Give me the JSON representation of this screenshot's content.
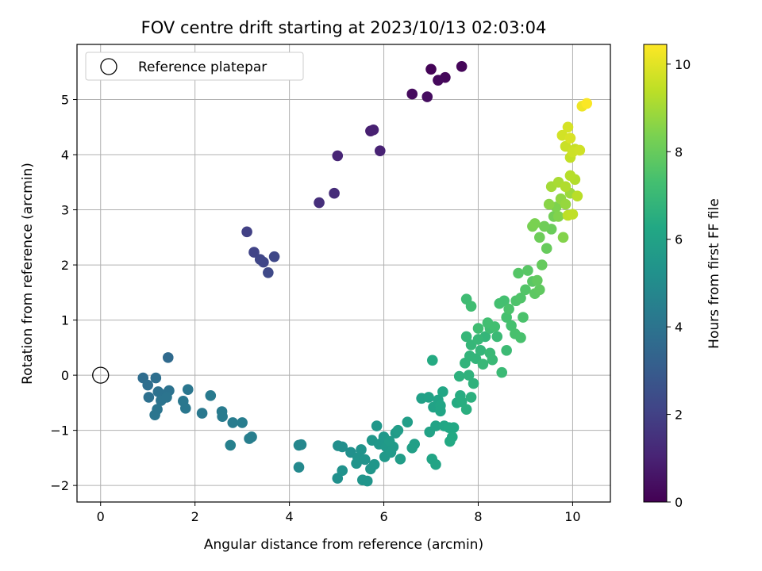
{
  "chart_data": {
    "type": "scatter",
    "title": "FOV centre drift starting at 2023/10/13 02:03:04",
    "xlabel": "Angular distance from reference (arcmin)",
    "ylabel": "Rotation from reference (arcmin)",
    "xlim": [
      -0.5,
      10.8
    ],
    "ylim": [
      -2.3,
      6.0
    ],
    "x_ticks": [
      0,
      2,
      4,
      6,
      8,
      10
    ],
    "y_ticks": [
      -2,
      -1,
      0,
      1,
      2,
      3,
      4,
      5
    ],
    "grid": true,
    "legend": {
      "position": "top-left",
      "entries": [
        "Reference platepar"
      ]
    },
    "reference_point": {
      "x": 0,
      "y": 0,
      "label": "Reference platepar"
    },
    "colorbar": {
      "label": "Hours from first FF file",
      "range": [
        0,
        10.45
      ],
      "ticks": [
        0,
        2,
        4,
        6,
        8,
        10
      ],
      "colormap": "viridis"
    },
    "series": [
      {
        "values_description_order": [
          "x",
          "y",
          "hours"
        ],
        "points": [
          [
            7.0,
            5.55,
            0.1
          ],
          [
            7.65,
            5.6,
            0.15
          ],
          [
            7.3,
            5.4,
            0.2
          ],
          [
            7.15,
            5.35,
            0.25
          ],
          [
            6.6,
            5.1,
            0.3
          ],
          [
            6.92,
            5.05,
            0.35
          ],
          [
            5.72,
            4.43,
            0.9
          ],
          [
            5.78,
            4.45,
            0.95
          ],
          [
            5.92,
            4.07,
            1.0
          ],
          [
            5.02,
            3.98,
            1.1
          ],
          [
            4.95,
            3.3,
            1.3
          ],
          [
            4.63,
            3.13,
            1.4
          ],
          [
            3.1,
            2.6,
            2.0
          ],
          [
            3.25,
            2.23,
            2.1
          ],
          [
            3.38,
            2.1,
            2.15
          ],
          [
            3.45,
            2.05,
            2.2
          ],
          [
            3.68,
            2.15,
            2.25
          ],
          [
            3.55,
            1.86,
            2.3
          ],
          [
            1.43,
            0.32,
            3.6
          ],
          [
            0.9,
            -0.05,
            3.7
          ],
          [
            1.0,
            -0.18,
            3.75
          ],
          [
            1.17,
            -0.05,
            3.8
          ],
          [
            1.02,
            -0.4,
            3.85
          ],
          [
            1.22,
            -0.3,
            3.9
          ],
          [
            1.3,
            -0.35,
            3.95
          ],
          [
            1.45,
            -0.28,
            3.95
          ],
          [
            1.28,
            -0.46,
            4.0
          ],
          [
            1.4,
            -0.4,
            4.0
          ],
          [
            1.2,
            -0.62,
            4.05
          ],
          [
            1.15,
            -0.72,
            4.05
          ],
          [
            1.85,
            -0.26,
            4.1
          ],
          [
            1.75,
            -0.47,
            4.15
          ],
          [
            1.8,
            -0.6,
            4.15
          ],
          [
            2.15,
            -0.69,
            4.2
          ],
          [
            2.33,
            -0.37,
            4.25
          ],
          [
            2.57,
            -0.66,
            4.3
          ],
          [
            2.58,
            -0.75,
            4.3
          ],
          [
            2.8,
            -0.86,
            4.35
          ],
          [
            3.0,
            -0.86,
            4.4
          ],
          [
            3.2,
            -1.12,
            4.45
          ],
          [
            3.15,
            -1.15,
            4.45
          ],
          [
            2.75,
            -1.27,
            4.5
          ],
          [
            4.2,
            -1.27,
            4.8
          ],
          [
            4.25,
            -1.26,
            4.8
          ],
          [
            4.2,
            -1.67,
            4.9
          ],
          [
            5.03,
            -1.28,
            5.1
          ],
          [
            5.12,
            -1.3,
            5.15
          ],
          [
            5.3,
            -1.4,
            5.2
          ],
          [
            5.02,
            -1.87,
            5.2
          ],
          [
            5.12,
            -1.73,
            5.25
          ],
          [
            5.52,
            -1.35,
            5.3
          ],
          [
            5.45,
            -1.5,
            5.3
          ],
          [
            5.42,
            -1.6,
            5.35
          ],
          [
            5.6,
            -1.53,
            5.35
          ],
          [
            5.55,
            -1.9,
            5.4
          ],
          [
            5.65,
            -1.92,
            5.4
          ],
          [
            5.72,
            -1.7,
            5.45
          ],
          [
            5.8,
            -1.62,
            5.45
          ],
          [
            5.75,
            -1.18,
            5.5
          ],
          [
            5.85,
            -0.92,
            5.5
          ],
          [
            5.9,
            -1.25,
            5.55
          ],
          [
            6.0,
            -1.12,
            5.55
          ],
          [
            6.05,
            -1.3,
            5.6
          ],
          [
            6.02,
            -1.48,
            5.6
          ],
          [
            6.15,
            -1.4,
            5.65
          ],
          [
            6.2,
            -1.3,
            5.65
          ],
          [
            6.12,
            -1.2,
            5.7
          ],
          [
            6.25,
            -1.05,
            5.7
          ],
          [
            6.35,
            -1.52,
            5.75
          ],
          [
            6.3,
            -1.0,
            5.75
          ],
          [
            6.5,
            -0.85,
            5.8
          ],
          [
            6.65,
            -1.25,
            5.85
          ],
          [
            6.6,
            -1.32,
            5.85
          ],
          [
            6.8,
            -0.42,
            5.9
          ],
          [
            6.95,
            -0.4,
            5.95
          ],
          [
            6.97,
            -1.03,
            6.0
          ],
          [
            7.05,
            -0.58,
            6.0
          ],
          [
            7.1,
            -0.92,
            6.05
          ],
          [
            7.15,
            -0.45,
            6.05
          ],
          [
            7.02,
            -1.52,
            6.1
          ],
          [
            7.1,
            -1.62,
            6.1
          ],
          [
            7.2,
            -0.55,
            6.15
          ],
          [
            7.2,
            -0.65,
            6.15
          ],
          [
            7.25,
            -0.3,
            6.2
          ],
          [
            7.28,
            -0.92,
            6.2
          ],
          [
            7.38,
            -0.95,
            6.25
          ],
          [
            7.48,
            -0.95,
            6.25
          ],
          [
            7.45,
            -1.12,
            6.3
          ],
          [
            7.4,
            -1.2,
            6.3
          ],
          [
            7.03,
            0.27,
            6.35
          ],
          [
            7.55,
            -0.5,
            6.4
          ],
          [
            7.62,
            -0.37,
            6.45
          ],
          [
            7.65,
            -0.48,
            6.5
          ],
          [
            7.75,
            -0.62,
            6.55
          ],
          [
            7.85,
            -0.4,
            6.6
          ],
          [
            7.6,
            -0.02,
            6.65
          ],
          [
            7.8,
            0.0,
            6.7
          ],
          [
            7.9,
            -0.15,
            6.7
          ],
          [
            7.72,
            0.22,
            6.75
          ],
          [
            7.82,
            0.35,
            6.8
          ],
          [
            7.95,
            0.3,
            6.8
          ],
          [
            8.05,
            0.45,
            6.85
          ],
          [
            8.15,
            0.7,
            6.85
          ],
          [
            7.75,
            0.7,
            6.9
          ],
          [
            7.85,
            0.55,
            6.9
          ],
          [
            8.0,
            0.65,
            6.95
          ],
          [
            8.1,
            0.2,
            6.95
          ],
          [
            8.25,
            0.4,
            7.0
          ],
          [
            8.3,
            0.28,
            7.0
          ],
          [
            8.5,
            0.05,
            7.05
          ],
          [
            8.4,
            0.7,
            7.05
          ],
          [
            8.6,
            0.45,
            7.1
          ],
          [
            8.25,
            0.85,
            7.15
          ],
          [
            7.75,
            1.38,
            7.15
          ],
          [
            7.85,
            1.25,
            7.2
          ],
          [
            8.0,
            0.85,
            7.2
          ],
          [
            8.2,
            0.95,
            7.25
          ],
          [
            8.35,
            0.88,
            7.25
          ],
          [
            8.45,
            1.3,
            7.3
          ],
          [
            8.55,
            1.35,
            7.3
          ],
          [
            8.6,
            1.05,
            7.35
          ],
          [
            8.7,
            0.9,
            7.35
          ],
          [
            8.78,
            0.75,
            7.4
          ],
          [
            8.9,
            0.68,
            7.4
          ],
          [
            8.95,
            1.05,
            7.45
          ],
          [
            8.65,
            1.2,
            7.45
          ],
          [
            8.8,
            1.35,
            7.5
          ],
          [
            8.9,
            1.4,
            7.55
          ],
          [
            9.0,
            1.55,
            7.6
          ],
          [
            8.85,
            1.85,
            7.65
          ],
          [
            9.05,
            1.9,
            7.7
          ],
          [
            9.15,
            1.7,
            7.75
          ],
          [
            9.2,
            1.48,
            7.8
          ],
          [
            9.3,
            1.55,
            7.85
          ],
          [
            9.25,
            1.72,
            7.9
          ],
          [
            9.35,
            2.0,
            7.95
          ],
          [
            9.45,
            2.3,
            8.0
          ],
          [
            9.55,
            2.65,
            8.05
          ],
          [
            9.3,
            2.5,
            8.1
          ],
          [
            9.4,
            2.7,
            8.15
          ],
          [
            9.6,
            2.88,
            8.2
          ],
          [
            9.15,
            2.7,
            8.3
          ],
          [
            9.2,
            2.75,
            8.35
          ],
          [
            9.65,
            3.05,
            8.4
          ],
          [
            9.7,
            2.88,
            8.45
          ],
          [
            9.8,
            2.5,
            8.5
          ],
          [
            9.5,
            3.1,
            8.6
          ],
          [
            9.75,
            3.2,
            8.7
          ],
          [
            9.85,
            3.1,
            8.8
          ],
          [
            9.95,
            3.3,
            8.9
          ],
          [
            9.55,
            3.42,
            9.0
          ],
          [
            9.7,
            3.5,
            9.1
          ],
          [
            9.85,
            3.42,
            9.2
          ],
          [
            10.05,
            3.55,
            9.25
          ],
          [
            9.95,
            3.62,
            9.3
          ],
          [
            10.1,
            3.25,
            9.35
          ],
          [
            9.9,
            2.9,
            9.4
          ],
          [
            10.0,
            2.92,
            9.45
          ],
          [
            9.95,
            3.95,
            9.5
          ],
          [
            10.05,
            4.1,
            9.55
          ],
          [
            9.85,
            4.15,
            9.6
          ],
          [
            10.0,
            4.05,
            9.65
          ],
          [
            10.15,
            4.08,
            9.7
          ],
          [
            9.78,
            4.35,
            9.75
          ],
          [
            9.9,
            4.5,
            9.8
          ],
          [
            9.95,
            4.3,
            9.85
          ],
          [
            10.2,
            4.88,
            10.2
          ],
          [
            10.3,
            4.93,
            10.4
          ]
        ]
      }
    ]
  }
}
